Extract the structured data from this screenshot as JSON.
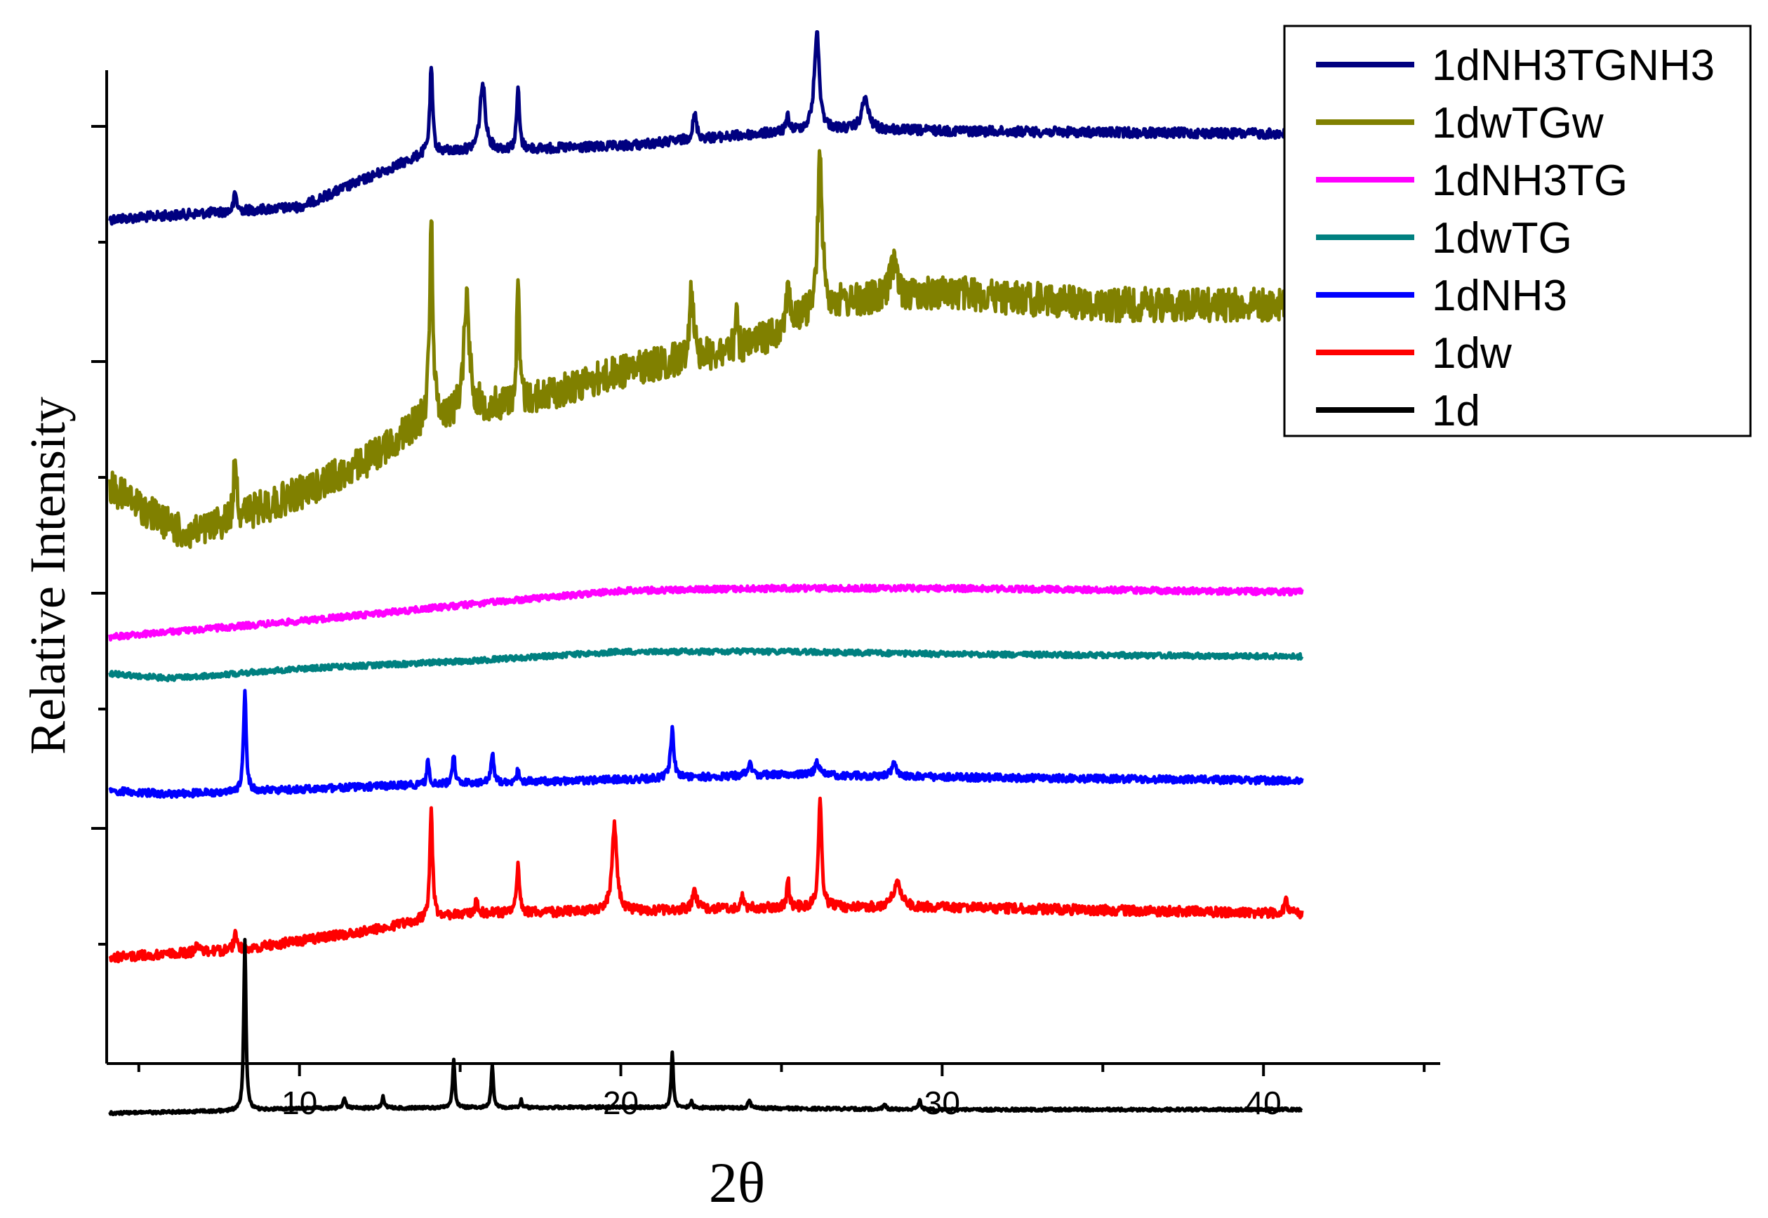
{
  "chart_data": {
    "type": "line",
    "title": "",
    "xlabel": "2θ",
    "ylabel": "Relative Intensity",
    "xlim": [
      4,
      45.5
    ],
    "x_ticks": [
      10,
      20,
      30,
      40
    ],
    "x_range": [
      4.1,
      41.2
    ],
    "grid": false,
    "legend_position": "top-right",
    "series": [
      {
        "name": "1dNH3TGNH3",
        "color": "#000080",
        "base": [
          [
            4.1,
            0.18
          ],
          [
            10,
            0.17
          ],
          [
            14,
            0.125
          ],
          [
            20,
            0.12
          ],
          [
            26,
            0.106
          ],
          [
            32,
            0.108
          ],
          [
            41.2,
            0.11
          ]
        ],
        "peaks": [
          [
            8.0,
            0.015,
            0.1
          ],
          [
            14.1,
            0.07,
            0.1
          ],
          [
            15.7,
            0.055,
            0.2
          ],
          [
            16.8,
            0.05,
            0.1
          ],
          [
            22.3,
            0.02,
            0.15
          ],
          [
            25.2,
            0.012,
            0.1
          ],
          [
            26.1,
            0.08,
            0.18
          ],
          [
            27.6,
            0.025,
            0.25
          ]
        ],
        "noise": 0.004
      },
      {
        "name": "1dwTGw",
        "color": "#808000",
        "base": [
          [
            4.1,
            0.4
          ],
          [
            6.5,
            0.44
          ],
          [
            10,
            0.405
          ],
          [
            12,
            0.38
          ],
          [
            13.6,
            0.35
          ],
          [
            15.4,
            0.335
          ],
          [
            17,
            0.33
          ],
          [
            20,
            0.305
          ],
          [
            24,
            0.285
          ],
          [
            26.3,
            0.25
          ],
          [
            30,
            0.24
          ],
          [
            35,
            0.25
          ],
          [
            41.2,
            0.25
          ]
        ],
        "peaks": [
          [
            8.0,
            0.055,
            0.1
          ],
          [
            14.1,
            0.17,
            0.12
          ],
          [
            15.2,
            0.095,
            0.2
          ],
          [
            16.8,
            0.095,
            0.1
          ],
          [
            22.2,
            0.06,
            0.15
          ],
          [
            23.6,
            0.025,
            0.1
          ],
          [
            25.2,
            0.04,
            0.1
          ],
          [
            26.2,
            0.13,
            0.15
          ],
          [
            28.5,
            0.03,
            0.25
          ]
        ],
        "noise": 0.014
      },
      {
        "name": "1dNH3TG",
        "color": "#ff00ff",
        "base": [
          [
            4.1,
            0.523
          ],
          [
            10,
            0.51
          ],
          [
            15,
            0.497
          ],
          [
            20,
            0.485
          ],
          [
            25,
            0.483
          ],
          [
            30,
            0.483
          ],
          [
            41.2,
            0.486
          ]
        ],
        "peaks": [],
        "noise": 0.0025
      },
      {
        "name": "1dwTG",
        "color": "#008080",
        "base": [
          [
            4.1,
            0.553
          ],
          [
            6,
            0.557
          ],
          [
            10,
            0.549
          ],
          [
            15,
            0.543
          ],
          [
            20,
            0.535
          ],
          [
            25,
            0.535
          ],
          [
            30,
            0.537
          ],
          [
            41.2,
            0.539
          ]
        ],
        "peaks": [],
        "noise": 0.0022
      },
      {
        "name": "1dNH3",
        "color": "#0000ff",
        "base": [
          [
            4.1,
            0.649
          ],
          [
            6,
            0.652
          ],
          [
            10,
            0.648
          ],
          [
            15,
            0.643
          ],
          [
            20,
            0.64
          ],
          [
            25,
            0.636
          ],
          [
            30,
            0.638
          ],
          [
            41.2,
            0.641
          ]
        ],
        "peaks": [
          [
            8.3,
            0.08,
            0.1
          ],
          [
            14.0,
            0.02,
            0.08
          ],
          [
            14.8,
            0.025,
            0.08
          ],
          [
            16.0,
            0.025,
            0.1
          ],
          [
            16.8,
            0.01,
            0.08
          ],
          [
            21.6,
            0.04,
            0.12
          ],
          [
            24.0,
            0.01,
            0.15
          ],
          [
            26.1,
            0.012,
            0.15
          ],
          [
            28.5,
            0.01,
            0.2
          ]
        ],
        "noise": 0.003
      },
      {
        "name": "1dw",
        "color": "#ff0000",
        "base": [
          [
            4.1,
            0.786
          ],
          [
            8,
            0.78
          ],
          [
            12,
            0.765
          ],
          [
            13.8,
            0.755
          ],
          [
            15,
            0.75
          ],
          [
            20,
            0.748
          ],
          [
            25,
            0.745
          ],
          [
            30,
            0.745
          ],
          [
            41.2,
            0.75
          ]
        ],
        "peaks": [
          [
            6.8,
            0.01,
            0.08
          ],
          [
            8.0,
            0.015,
            0.1
          ],
          [
            14.1,
            0.09,
            0.1
          ],
          [
            15.5,
            0.01,
            0.1
          ],
          [
            16.8,
            0.04,
            0.1
          ],
          [
            19.8,
            0.07,
            0.18
          ],
          [
            22.3,
            0.015,
            0.15
          ],
          [
            23.8,
            0.01,
            0.1
          ],
          [
            25.2,
            0.025,
            0.08
          ],
          [
            26.2,
            0.09,
            0.12
          ],
          [
            28.6,
            0.02,
            0.3
          ],
          [
            40.7,
            0.012,
            0.1
          ]
        ],
        "noise": 0.004
      },
      {
        "name": "1d",
        "color": "#000000",
        "base": [
          [
            4.1,
            0.914
          ],
          [
            8,
            0.912
          ],
          [
            10,
            0.91
          ],
          [
            20,
            0.909
          ],
          [
            30,
            0.911
          ],
          [
            41.2,
            0.911
          ]
        ],
        "peaks": [
          [
            8.3,
            0.14,
            0.08
          ],
          [
            11.4,
            0.008,
            0.1
          ],
          [
            12.6,
            0.009,
            0.1
          ],
          [
            14.8,
            0.04,
            0.08
          ],
          [
            16.0,
            0.035,
            0.08
          ],
          [
            16.9,
            0.006,
            0.08
          ],
          [
            21.6,
            0.045,
            0.08
          ],
          [
            22.2,
            0.005,
            0.08
          ],
          [
            24.0,
            0.006,
            0.1
          ],
          [
            28.2,
            0.004,
            0.1
          ],
          [
            29.3,
            0.007,
            0.1
          ]
        ],
        "noise": 0.0012
      }
    ]
  }
}
